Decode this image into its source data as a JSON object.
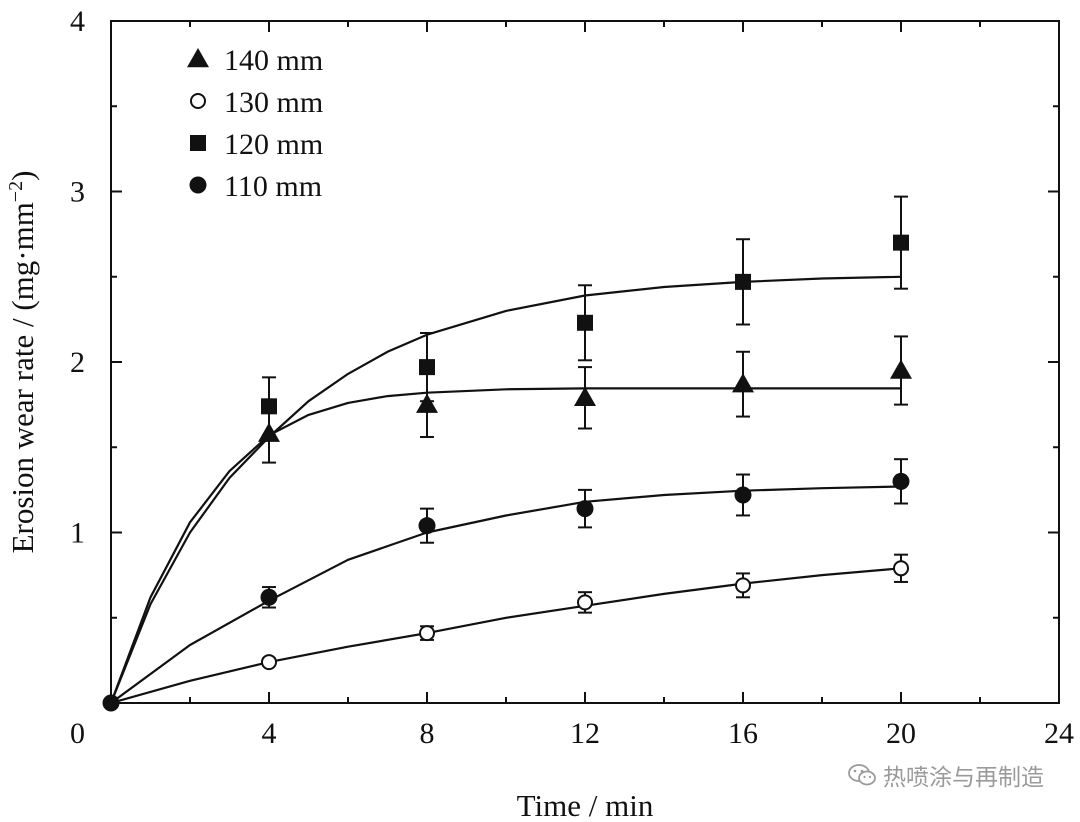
{
  "chart_data": {
    "type": "scatter",
    "title": "",
    "xlabel": "Time / min",
    "ylabel": "Erosion wear rate / (mg·mm",
    "ylabel_sup": "−2",
    "ylabel_close": ")",
    "xlim": [
      0,
      24
    ],
    "ylim": [
      0,
      4
    ],
    "x_ticks": [
      4,
      8,
      12,
      16,
      20,
      24
    ],
    "y_ticks": [
      1,
      2,
      3,
      4
    ],
    "origin_label": "0",
    "grid": false,
    "legend_position": "top-left",
    "series": [
      {
        "name": "140 mm",
        "marker": "triangle-filled",
        "points": [
          {
            "x": 4,
            "y": 1.58,
            "err": 0.17
          },
          {
            "x": 8,
            "y": 1.75,
            "err": 0.19
          },
          {
            "x": 12,
            "y": 1.79,
            "err": 0.18
          },
          {
            "x": 16,
            "y": 1.87,
            "err": 0.19
          },
          {
            "x": 20,
            "y": 1.95,
            "err": 0.2
          }
        ],
        "fit": [
          [
            0,
            0
          ],
          [
            1,
            0.62
          ],
          [
            2,
            1.06
          ],
          [
            3,
            1.36
          ],
          [
            4,
            1.57
          ],
          [
            5,
            1.69
          ],
          [
            6,
            1.76
          ],
          [
            7,
            1.8
          ],
          [
            8,
            1.82
          ],
          [
            10,
            1.84
          ],
          [
            12,
            1.845
          ],
          [
            16,
            1.845
          ],
          [
            20,
            1.845
          ]
        ]
      },
      {
        "name": "130 mm",
        "marker": "circle-open",
        "points": [
          {
            "x": 4,
            "y": 0.24,
            "err": 0.02
          },
          {
            "x": 8,
            "y": 0.41,
            "err": 0.04
          },
          {
            "x": 12,
            "y": 0.59,
            "err": 0.06
          },
          {
            "x": 16,
            "y": 0.69,
            "err": 0.07
          },
          {
            "x": 20,
            "y": 0.79,
            "err": 0.08
          }
        ],
        "fit": [
          [
            0,
            0
          ],
          [
            2,
            0.13
          ],
          [
            4,
            0.24
          ],
          [
            6,
            0.33
          ],
          [
            8,
            0.41
          ],
          [
            10,
            0.5
          ],
          [
            12,
            0.57
          ],
          [
            14,
            0.64
          ],
          [
            16,
            0.7
          ],
          [
            18,
            0.75
          ],
          [
            20,
            0.79
          ]
        ]
      },
      {
        "name": "120 mm",
        "marker": "square-filled",
        "points": [
          {
            "x": 4,
            "y": 1.74,
            "err": 0.17
          },
          {
            "x": 8,
            "y": 1.97,
            "err": 0.2
          },
          {
            "x": 12,
            "y": 2.23,
            "err": 0.22
          },
          {
            "x": 16,
            "y": 2.47,
            "err": 0.25
          },
          {
            "x": 20,
            "y": 2.7,
            "err": 0.27
          }
        ],
        "fit": [
          [
            0,
            0
          ],
          [
            1,
            0.58
          ],
          [
            2,
            1.0
          ],
          [
            3,
            1.32
          ],
          [
            4,
            1.56
          ],
          [
            5,
            1.77
          ],
          [
            6,
            1.93
          ],
          [
            7,
            2.06
          ],
          [
            8,
            2.16
          ],
          [
            10,
            2.3
          ],
          [
            12,
            2.39
          ],
          [
            14,
            2.44
          ],
          [
            16,
            2.47
          ],
          [
            18,
            2.49
          ],
          [
            20,
            2.5
          ]
        ]
      },
      {
        "name": "110 mm",
        "marker": "circle-filled",
        "points": [
          {
            "x": 4,
            "y": 0.62,
            "err": 0.06
          },
          {
            "x": 8,
            "y": 1.04,
            "err": 0.1
          },
          {
            "x": 12,
            "y": 1.14,
            "err": 0.11
          },
          {
            "x": 16,
            "y": 1.22,
            "err": 0.12
          },
          {
            "x": 20,
            "y": 1.3,
            "err": 0.13
          }
        ],
        "fit": [
          [
            0,
            0
          ],
          [
            2,
            0.34
          ],
          [
            4,
            0.6
          ],
          [
            6,
            0.84
          ],
          [
            8,
            1.0
          ],
          [
            10,
            1.1
          ],
          [
            12,
            1.18
          ],
          [
            14,
            1.22
          ],
          [
            16,
            1.245
          ],
          [
            18,
            1.26
          ],
          [
            20,
            1.27
          ]
        ]
      }
    ]
  },
  "watermark": {
    "icon": "wechat-icon",
    "text": "热喷涂与再制造"
  }
}
